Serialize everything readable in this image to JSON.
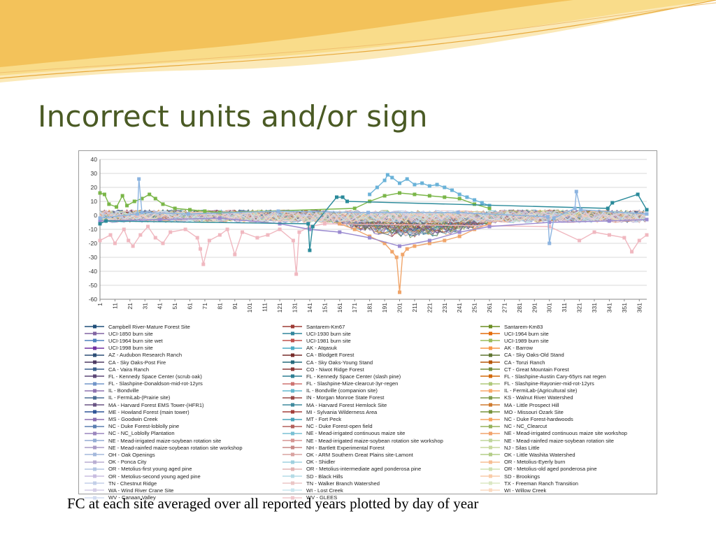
{
  "slide": {
    "title": "Incorrect units and/or sign",
    "caption": "FC at each site averaged over all reported years plotted by day of year",
    "accent_color": "#4a5a24",
    "wave_colors": [
      "#f3c25a",
      "#f9dc8a",
      "#fbe9b8"
    ]
  },
  "chart_data": {
    "type": "line",
    "title": "",
    "xlabel": "",
    "ylabel": "",
    "ylim": [
      -60,
      40
    ],
    "yticks": [
      40,
      30,
      20,
      10,
      0,
      -10,
      -20,
      -30,
      -40,
      -50,
      -60
    ],
    "xlim": [
      1,
      366
    ],
    "xticks": [
      1,
      11,
      21,
      31,
      41,
      51,
      61,
      71,
      81,
      91,
      101,
      111,
      121,
      131,
      141,
      151,
      161,
      171,
      181,
      191,
      201,
      211,
      221,
      231,
      241,
      251,
      261,
      271,
      281,
      291,
      301,
      311,
      321,
      331,
      341,
      351,
      361
    ],
    "grid": "horizontal",
    "legend_position": "bottom",
    "highlighted_series": [
      {
        "name": "AK - Atqasuk",
        "color": "#6ab2d8",
        "points": [
          [
            181,
            15
          ],
          [
            186,
            20
          ],
          [
            191,
            25
          ],
          [
            193,
            29
          ],
          [
            196,
            27
          ],
          [
            201,
            23
          ],
          [
            206,
            26
          ],
          [
            211,
            22
          ],
          [
            216,
            23
          ],
          [
            221,
            21
          ],
          [
            226,
            22
          ],
          [
            231,
            20
          ],
          [
            236,
            18
          ],
          [
            241,
            15
          ],
          [
            246,
            13
          ],
          [
            251,
            11
          ],
          [
            256,
            9
          ],
          [
            261,
            7
          ]
        ]
      },
      {
        "name": "CA - Sky Oaks-Old Stand",
        "color": "#7ab648",
        "points": [
          [
            1,
            16
          ],
          [
            4,
            15
          ],
          [
            7,
            8
          ],
          [
            12,
            6
          ],
          [
            16,
            14
          ],
          [
            19,
            7
          ],
          [
            24,
            10
          ],
          [
            29,
            12
          ],
          [
            34,
            15
          ],
          [
            38,
            12
          ],
          [
            43,
            8
          ],
          [
            51,
            5
          ],
          [
            61,
            4
          ],
          [
            71,
            3
          ],
          [
            81,
            2
          ],
          [
            171,
            5
          ],
          [
            181,
            10
          ],
          [
            191,
            14
          ],
          [
            201,
            16
          ],
          [
            211,
            15
          ],
          [
            221,
            14
          ],
          [
            231,
            13
          ],
          [
            241,
            12
          ],
          [
            251,
            8
          ],
          [
            261,
            5
          ]
        ]
      },
      {
        "name": "WV - GLEES",
        "color": "#f0b8c0",
        "points": [
          [
            1,
            -18
          ],
          [
            8,
            -14
          ],
          [
            11,
            -20
          ],
          [
            17,
            -10
          ],
          [
            20,
            -18
          ],
          [
            23,
            -22
          ],
          [
            28,
            -14
          ],
          [
            33,
            -8
          ],
          [
            38,
            -16
          ],
          [
            43,
            -20
          ],
          [
            48,
            -12
          ],
          [
            58,
            -10
          ],
          [
            66,
            -16
          ],
          [
            68,
            -24
          ],
          [
            70,
            -35
          ],
          [
            74,
            -18
          ],
          [
            81,
            -14
          ],
          [
            86,
            -10
          ],
          [
            91,
            -28
          ],
          [
            96,
            -12
          ],
          [
            106,
            -16
          ],
          [
            113,
            -14
          ],
          [
            121,
            -10
          ],
          [
            130,
            -18
          ],
          [
            132,
            -42
          ],
          [
            134,
            -12
          ],
          [
            141,
            -8
          ],
          [
            151,
            -6
          ],
          [
            301,
            -8
          ],
          [
            321,
            -18
          ],
          [
            331,
            -12
          ],
          [
            341,
            -14
          ],
          [
            351,
            -16
          ],
          [
            356,
            -26
          ],
          [
            361,
            -18
          ],
          [
            366,
            -14
          ]
        ]
      },
      {
        "name": "OR - Metolius-first young aged pine",
        "color": "#f0a56a",
        "points": [
          [
            161,
            -6
          ],
          [
            171,
            -10
          ],
          [
            181,
            -15
          ],
          [
            191,
            -20
          ],
          [
            196,
            -26
          ],
          [
            199,
            -30
          ],
          [
            201,
            -55
          ],
          [
            203,
            -28
          ],
          [
            206,
            -24
          ],
          [
            211,
            -22
          ],
          [
            221,
            -20
          ],
          [
            231,
            -18
          ],
          [
            241,
            -15
          ],
          [
            251,
            -10
          ],
          [
            261,
            -6
          ]
        ]
      },
      {
        "name": "UCI-1964 burn site wet",
        "color": "#9a8ad0",
        "points": [
          [
            1,
            -4
          ],
          [
            41,
            -3
          ],
          [
            81,
            -2
          ],
          [
            121,
            -6
          ],
          [
            141,
            -10
          ],
          [
            161,
            -12
          ],
          [
            181,
            -16
          ],
          [
            201,
            -22
          ],
          [
            221,
            -18
          ],
          [
            241,
            -12
          ],
          [
            261,
            -8
          ],
          [
            301,
            -5
          ],
          [
            341,
            -4
          ],
          [
            366,
            -3
          ]
        ]
      },
      {
        "name": "CA - Blodgett Forest",
        "color": "#2a8a9a",
        "points": [
          [
            1,
            -6
          ],
          [
            5,
            -4
          ],
          [
            140,
            -6
          ],
          [
            141,
            -25
          ],
          [
            143,
            -8
          ],
          [
            159,
            13
          ],
          [
            163,
            13
          ],
          [
            166,
            10
          ],
          [
            340,
            5
          ],
          [
            343,
            9
          ],
          [
            360,
            15
          ],
          [
            366,
            4
          ]
        ]
      },
      {
        "name": "UCI-1850 burn site",
        "color": "#8cb4e0",
        "points": [
          [
            1,
            -2
          ],
          [
            26,
            1
          ],
          [
            27,
            26
          ],
          [
            29,
            2
          ],
          [
            60,
            1
          ],
          [
            120,
            3
          ],
          [
            180,
            2
          ],
          [
            240,
            2
          ],
          [
            300,
            -1
          ],
          [
            301,
            -20
          ],
          [
            304,
            -2
          ],
          [
            318,
            5
          ],
          [
            319,
            17
          ],
          [
            322,
            4
          ],
          [
            366,
            1
          ]
        ]
      }
    ],
    "series": [
      {
        "name": "Campbell River-Mature Forest Site",
        "color": "#1f4e79"
      },
      {
        "name": "Santarem-Km67",
        "color": "#9e3b35"
      },
      {
        "name": "Santarem-Km83",
        "color": "#6b8e23"
      },
      {
        "name": "UCI-1850 burn site",
        "color": "#8064a2"
      },
      {
        "name": "UCI-1930 burn site",
        "color": "#31859c"
      },
      {
        "name": "UCI-1964 burn site",
        "color": "#e46c0a"
      },
      {
        "name": "UCI-1964 burn site wet",
        "color": "#4f81bd"
      },
      {
        "name": "UCI-1981 burn site",
        "color": "#c0504d"
      },
      {
        "name": "UCI-1989 burn site",
        "color": "#9bbb59"
      },
      {
        "name": "UCI-1998 burn site",
        "color": "#7030a0"
      },
      {
        "name": "AK - Atqasuk",
        "color": "#4bacc6"
      },
      {
        "name": "AK - Barrow",
        "color": "#f79646"
      },
      {
        "name": "AZ - Audubon Research Ranch",
        "color": "#2c4d75"
      },
      {
        "name": "CA - Blodgett Forest",
        "color": "#772c2a"
      },
      {
        "name": "CA - Sky Oaks-Old Stand",
        "color": "#5f7530"
      },
      {
        "name": "CA - Sky Oaks-Post Fire",
        "color": "#4d3b62"
      },
      {
        "name": "CA - Sky Oaks-Young Stand",
        "color": "#276a7c"
      },
      {
        "name": "CA - Tonzi Ranch",
        "color": "#b65708"
      },
      {
        "name": "CA - Vaira Ranch",
        "color": "#3a5f8b"
      },
      {
        "name": "CO - Niwot Ridge Forest",
        "color": "#8c3836"
      },
      {
        "name": "CT - Great Mountain Forest",
        "color": "#728c3c"
      },
      {
        "name": "FL - Kennedy Space Center (scrub oak)",
        "color": "#5c4776"
      },
      {
        "name": "FL - Kennedy Space Center (slash pine)",
        "color": "#2e7f94"
      },
      {
        "name": "FL - Slashpine-Austin Cary-65yrs nat regen",
        "color": "#d26a0c"
      },
      {
        "name": "FL - Slashpine-Donaldson-mid-rot-12yrs",
        "color": "#7295c8"
      },
      {
        "name": "FL - Slashpine-Mize-clearcut-3yr-regen",
        "color": "#cd7371"
      },
      {
        "name": "FL - Slashpine-Rayonier-mid-rot-12yrs",
        "color": "#afc97a"
      },
      {
        "name": "IL - Bondville",
        "color": "#8e73b0"
      },
      {
        "name": "IL - Bondville (companion site)",
        "color": "#62b8cf"
      },
      {
        "name": "IL - FermiLab-(Agricultural site)",
        "color": "#f8a86a"
      },
      {
        "name": "IL - FermiLab-(Prairie site)",
        "color": "#4b6d94"
      },
      {
        "name": "IN - Morgan Monroe State Forest",
        "color": "#974a47"
      },
      {
        "name": "KS - Walnut River Watershed",
        "color": "#7d9a4a"
      },
      {
        "name": "MA - Harvard Forest EMS Tower-(HFR1)",
        "color": "#6a5484"
      },
      {
        "name": "MA - Harvard Forest Hemlock Site",
        "color": "#3f8a9e"
      },
      {
        "name": "MA - Little Prospect Hill",
        "color": "#cf7a2e"
      },
      {
        "name": "ME - Howland Forest (main tower)",
        "color": "#2f5597"
      },
      {
        "name": "MI - Sylvania Wilderness Area",
        "color": "#a33f3a"
      },
      {
        "name": "MO - Missouri Ozark Site",
        "color": "#77933c"
      },
      {
        "name": "MS - Goodwin Creek",
        "color": "#8b6fb0"
      },
      {
        "name": "MT - Fort Peck",
        "color": "#4aa3ba"
      },
      {
        "name": "NC - Duke Forest-hardwoods",
        "color": "#f4a460"
      },
      {
        "name": "NC - Duke Forest-loblolly pine",
        "color": "#5b7fb0"
      },
      {
        "name": "NC - Duke Forest-open field",
        "color": "#b3605c"
      },
      {
        "name": "NC - NC_Clearcut",
        "color": "#95b25c"
      },
      {
        "name": "NC - NC_Loblolly Plantation",
        "color": "#9a86bd"
      },
      {
        "name": "NE - Mead-irrigated continuous maize site",
        "color": "#78c0d4"
      },
      {
        "name": "NE - Mead-irrigated continuous maize site workshop",
        "color": "#f2a36c"
      },
      {
        "name": "NE - Mead-irrigated maize-soybean rotation site",
        "color": "#94acd4"
      },
      {
        "name": "NE - Mead-irrigated maize-soybean rotation site workshop",
        "color": "#d69492"
      },
      {
        "name": "NE - Mead-rainfed maize-soybean rotation site",
        "color": "#bfd59a"
      },
      {
        "name": "NE - Mead-rainfed maize-soybean rotation site workshop",
        "color": "#a99bc6"
      },
      {
        "name": "NH - Bartlett Experimental Forest",
        "color": "#c78886"
      },
      {
        "name": "NJ - Silas Little",
        "color": "#c8d99e"
      },
      {
        "name": "OH - Oak Openings",
        "color": "#a4b8dc"
      },
      {
        "name": "OK - ARM Southern Great Plains site-Lamont",
        "color": "#d9a3a1"
      },
      {
        "name": "OK - Little Washita Watershed",
        "color": "#b3cd87"
      },
      {
        "name": "OK - Ponca City",
        "color": "#b9aed2"
      },
      {
        "name": "OK - Shidler",
        "color": "#9fd0df"
      },
      {
        "name": "OR - Metolius-Eyerly burn",
        "color": "#f7be94"
      },
      {
        "name": "OR - Metolius-first young aged pine",
        "color": "#b2c4e2"
      },
      {
        "name": "OR - Metolius-intermediate aged ponderosa pine",
        "color": "#e2b4b3"
      },
      {
        "name": "OR - Metolius-old aged ponderosa pine",
        "color": "#cfe0b2"
      },
      {
        "name": "OR - Metolius-second young aged pine",
        "color": "#c8bde0"
      },
      {
        "name": "SD - Black Hills",
        "color": "#b4dbe6"
      },
      {
        "name": "SD - Brookings",
        "color": "#f9cca8"
      },
      {
        "name": "TN - Chestnut Ridge",
        "color": "#c3cfe8"
      },
      {
        "name": "TN - Walker Branch Watershed",
        "color": "#ebc6c5"
      },
      {
        "name": "TX - Freeman Ranch Transition",
        "color": "#dbe8c4"
      },
      {
        "name": "WA - Wind River Crane Site",
        "color": "#d4cce6"
      },
      {
        "name": "WI - Lost Creek",
        "color": "#c9e6ee"
      },
      {
        "name": "WI - Willow Creek",
        "color": "#fbdac0"
      },
      {
        "name": "WV - Canaan Valley",
        "color": "#d2dcf0"
      },
      {
        "name": "WV - GLEES",
        "color": "#f0c8cc"
      }
    ]
  }
}
